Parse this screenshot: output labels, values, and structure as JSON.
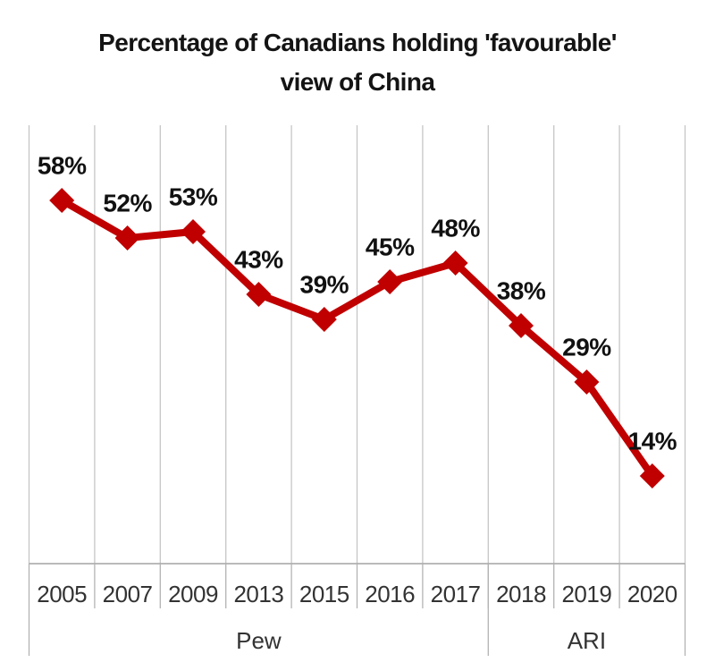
{
  "header": {
    "title_line1": "Percentage of Canadians holding 'favourable'",
    "title_line2": "view of China"
  },
  "chart_data": {
    "type": "line",
    "title": "Percentage of Canadians holding 'favourable' view of China",
    "categories": [
      "2005",
      "2007",
      "2009",
      "2013",
      "2015",
      "2016",
      "2017",
      "2018",
      "2019",
      "2020"
    ],
    "values": [
      58,
      52,
      53,
      43,
      39,
      45,
      48,
      38,
      29,
      14
    ],
    "labels": [
      "58%",
      "52%",
      "53%",
      "43%",
      "39%",
      "45%",
      "48%",
      "38%",
      "29%",
      "14%"
    ],
    "groups": [
      {
        "label": "Pew",
        "start": 0,
        "end": 6
      },
      {
        "label": "ARI",
        "start": 7,
        "end": 9
      }
    ],
    "xlabel": "",
    "ylabel": "",
    "ylim": [
      0,
      70
    ],
    "grid": "vertical-only",
    "legend": "none",
    "marker": "diamond",
    "line_color": "#c00000",
    "label_color": "#111111",
    "axis_text_color": "#333333",
    "gridline_color": "#c6c6c6",
    "axis_line_color": "#a3a3a3",
    "separator_color": "#b3b3b3"
  }
}
